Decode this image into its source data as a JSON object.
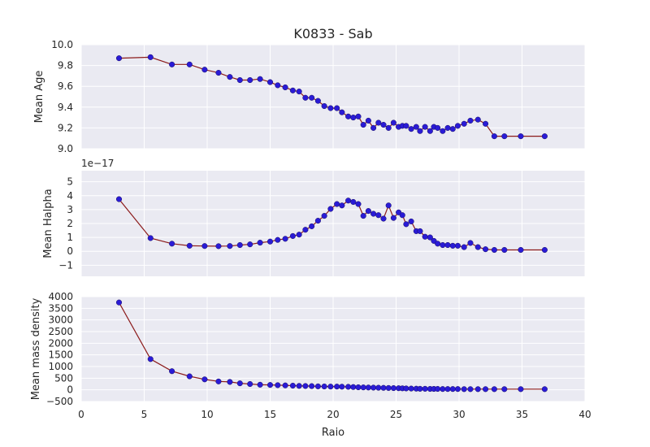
{
  "chart_data": {
    "type": "line",
    "title": "K0833 - Sab",
    "xlabel": "Raio",
    "xlim": [
      0,
      40
    ],
    "x_ticks": [
      "0",
      "5",
      "10",
      "15",
      "20",
      "25",
      "30",
      "35",
      "40"
    ],
    "grid": true,
    "line_color": "#8B1A1A",
    "marker_color": "#2A1BD6",
    "background_color": "#EAEAF2",
    "x": [
      3.0,
      5.5,
      7.2,
      8.6,
      9.8,
      10.9,
      11.8,
      12.6,
      13.4,
      14.2,
      15.0,
      15.6,
      16.2,
      16.8,
      17.3,
      17.8,
      18.3,
      18.8,
      19.3,
      19.8,
      20.3,
      20.7,
      21.2,
      21.6,
      22.0,
      22.4,
      22.8,
      23.2,
      23.6,
      24.0,
      24.4,
      24.8,
      25.2,
      25.5,
      25.8,
      26.2,
      26.6,
      26.9,
      27.3,
      27.7,
      28.0,
      28.3,
      28.7,
      29.1,
      29.5,
      29.9,
      30.4,
      30.9,
      31.5,
      32.1,
      32.8,
      33.6,
      34.9,
      36.8
    ],
    "panels": [
      {
        "ylabel": "Mean Age",
        "ylim": [
          9.0,
          10.0
        ],
        "y_ticks": [
          "9.0",
          "9.2",
          "9.4",
          "9.6",
          "9.8",
          "10.0"
        ],
        "offset_text": "",
        "values": [
          9.87,
          9.88,
          9.81,
          9.81,
          9.76,
          9.73,
          9.69,
          9.66,
          9.66,
          9.67,
          9.64,
          9.61,
          9.59,
          9.56,
          9.55,
          9.49,
          9.49,
          9.46,
          9.41,
          9.39,
          9.39,
          9.35,
          9.31,
          9.3,
          9.31,
          9.23,
          9.27,
          9.2,
          9.25,
          9.23,
          9.2,
          9.25,
          9.21,
          9.22,
          9.22,
          9.19,
          9.21,
          9.17,
          9.21,
          9.17,
          9.21,
          9.2,
          9.17,
          9.2,
          9.19,
          9.22,
          9.24,
          9.27,
          9.28,
          9.24,
          9.12,
          9.12,
          9.12,
          9.12
        ]
      },
      {
        "ylabel": "Mean Halpha",
        "ylim": [
          -1.8,
          5.8
        ],
        "y_ticks": [
          "−1",
          "0",
          "1",
          "2",
          "3",
          "4",
          "5"
        ],
        "offset_text": "1e−17",
        "values": [
          3.75,
          0.95,
          0.55,
          0.4,
          0.38,
          0.37,
          0.38,
          0.45,
          0.5,
          0.62,
          0.7,
          0.82,
          0.9,
          1.1,
          1.2,
          1.55,
          1.8,
          2.2,
          2.55,
          3.05,
          3.4,
          3.3,
          3.65,
          3.55,
          3.4,
          2.55,
          2.9,
          2.7,
          2.6,
          2.35,
          3.3,
          2.4,
          2.8,
          2.6,
          1.95,
          2.15,
          1.45,
          1.45,
          1.05,
          1.0,
          0.75,
          0.55,
          0.45,
          0.45,
          0.4,
          0.4,
          0.3,
          0.6,
          0.3,
          0.15,
          0.1,
          0.1,
          0.1,
          0.1
        ]
      },
      {
        "ylabel": "Mean mass density",
        "ylim": [
          -500,
          4000
        ],
        "y_ticks": [
          "−500",
          "0",
          "500",
          "1000",
          "1500",
          "2000",
          "2500",
          "3000",
          "3500",
          "4000"
        ],
        "offset_text": "",
        "values": [
          3750,
          1320,
          800,
          580,
          450,
          360,
          340,
          280,
          250,
          220,
          210,
          200,
          190,
          180,
          170,
          165,
          160,
          150,
          145,
          140,
          140,
          135,
          130,
          120,
          110,
          105,
          100,
          95,
          90,
          85,
          80,
          75,
          70,
          65,
          60,
          55,
          50,
          45,
          45,
          40,
          40,
          40,
          35,
          35,
          35,
          35,
          30,
          30,
          30,
          30,
          30,
          30,
          30,
          30
        ]
      }
    ]
  }
}
